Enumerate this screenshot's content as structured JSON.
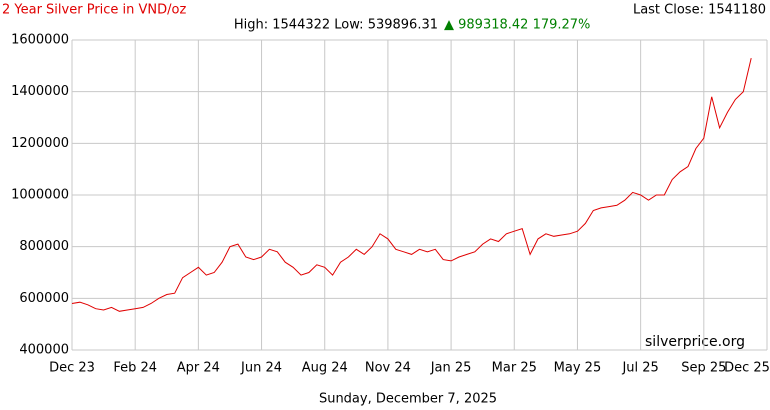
{
  "chart_data": {
    "type": "line",
    "title": "2 Year Silver Price in VND/oz",
    "last_close": "Last Close: 1541180",
    "high_low": "High: 1544322 Low: 539896.31",
    "change": "▲ 989318.42 179.27%",
    "watermark": "silverprice.org",
    "date_label": "Sunday, December 7, 2025",
    "categories": [
      "Dec 23",
      null,
      null,
      null,
      null,
      null,
      null,
      null,
      "Feb 24",
      null,
      null,
      null,
      null,
      null,
      null,
      null,
      "Apr 24",
      null,
      null,
      null,
      null,
      null,
      null,
      null,
      "Jun 24",
      null,
      null,
      null,
      null,
      null,
      null,
      null,
      "Aug 24",
      null,
      null,
      null,
      null,
      null,
      null,
      null,
      "Nov 24",
      null,
      null,
      null,
      null,
      null,
      null,
      null,
      "Jan 25",
      null,
      null,
      null,
      null,
      null,
      null,
      null,
      "Mar 25",
      null,
      null,
      null,
      null,
      null,
      null,
      null,
      "May 25",
      null,
      null,
      null,
      null,
      null,
      null,
      null,
      "Jul 25",
      null,
      null,
      null,
      null,
      null,
      null,
      null,
      "Sep 25",
      null,
      null,
      null,
      null,
      null,
      null,
      null,
      "Dec 25"
    ],
    "series": [
      {
        "name": "Silver",
        "color": "#e00000",
        "values": [
          580000,
          585000,
          575000,
          560000,
          555000,
          565000,
          550000,
          555000,
          560000,
          565000,
          580000,
          600000,
          615000,
          620000,
          680000,
          700000,
          720000,
          690000,
          700000,
          740000,
          800000,
          810000,
          760000,
          750000,
          760000,
          790000,
          780000,
          740000,
          720000,
          690000,
          700000,
          730000,
          720000,
          690000,
          740000,
          760000,
          790000,
          770000,
          800000,
          850000,
          830000,
          790000,
          780000,
          770000,
          790000,
          780000,
          790000,
          750000,
          745000,
          760000,
          770000,
          780000,
          810000,
          830000,
          820000,
          850000,
          860000,
          870000,
          770000,
          830000,
          850000,
          840000,
          845000,
          850000,
          860000,
          890000,
          940000,
          950000,
          955000,
          960000,
          980000,
          1010000,
          1000000,
          980000,
          1000000,
          1000000,
          1060000,
          1090000,
          1110000,
          1180000,
          1220000,
          1380000,
          1260000,
          1320000,
          1370000,
          1400000,
          1530000,
          null,
          null
        ]
      }
    ],
    "ylim": [
      400000,
      1600000
    ],
    "yticks": [
      400000,
      600000,
      800000,
      1000000,
      1200000,
      1400000,
      1600000
    ],
    "grid": true
  }
}
